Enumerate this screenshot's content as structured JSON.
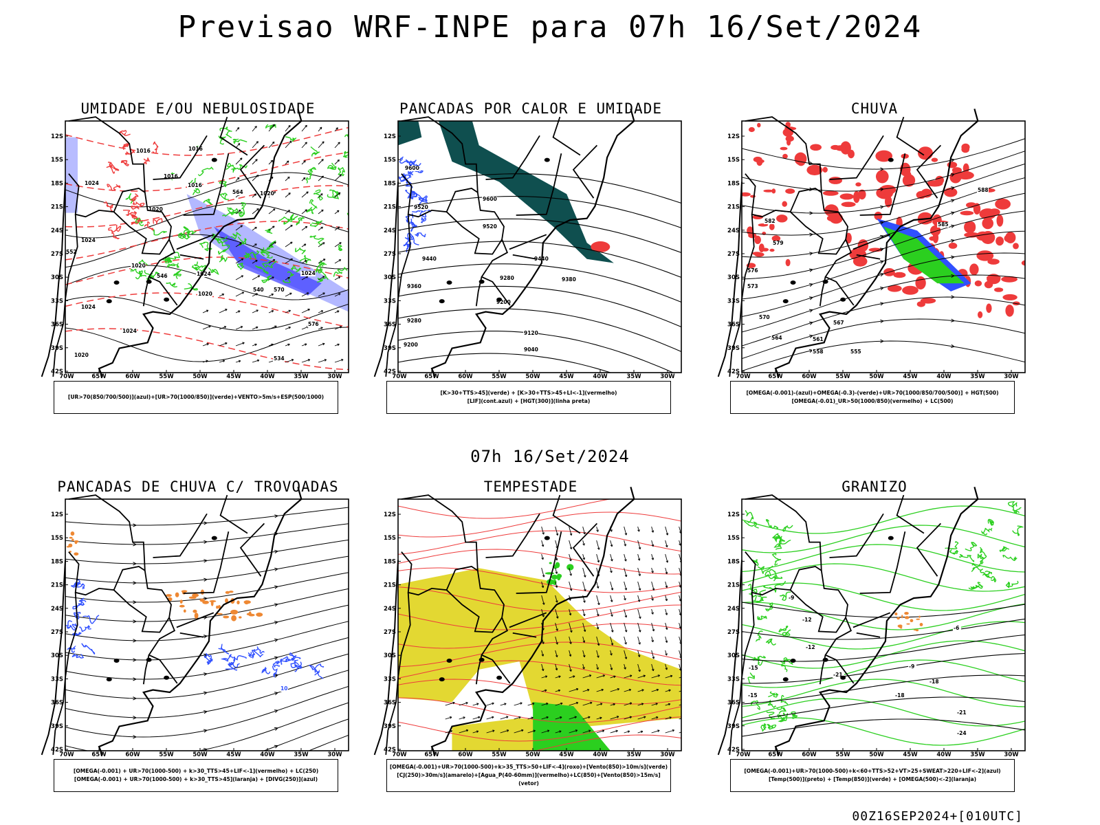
{
  "header": {
    "title": "Previsao WRF-INPE  para 07h 16/Set/2024"
  },
  "middle": {
    "title": "07h 16/Set/2024"
  },
  "footer": {
    "stamp": "00Z16SEP2024+[010UTC]"
  },
  "axes": {
    "lat_labels": [
      "12S",
      "15S",
      "18S",
      "21S",
      "24S",
      "27S",
      "30S",
      "33S",
      "36S",
      "39S",
      "42S"
    ],
    "lon_labels": [
      "70W",
      "65W",
      "60W",
      "55W",
      "50W",
      "45W",
      "40W",
      "35W",
      "30W"
    ]
  },
  "colors": {
    "red": "#ee3b3b",
    "green": "#2bcf1f",
    "blue": "#3050ff",
    "dark_teal": "#0f4f4f",
    "orange": "#ee8833",
    "yellow": "#e3d832",
    "lavender": "#9aa0ff"
  },
  "panels": [
    {
      "title": "UMIDADE E/OU NEBULOSIDADE",
      "caption_lines": [
        "[UR>70(850/700/500)](azul)+[UR>70(1000/850)](verde)+VENTO>5m/s+ESP(500/1000)"
      ],
      "contour_labels": [
        "1016",
        "1016",
        "1016",
        "1024",
        "1020",
        "1016",
        "1020",
        "1024",
        "1020",
        "1024",
        "1024",
        "1020",
        "1024",
        "1024",
        "1020",
        "570",
        "564",
        "552",
        "546",
        "540",
        "534",
        "576"
      ]
    },
    {
      "title": "PANCADAS POR CALOR E UMIDADE",
      "caption_lines": [
        "[K>30+TTS>45](verde) + [K>30+TTS>45+LI<-1](vermelho)",
        "[LIF](cont.azul) + [HGT(300)](linha preta)"
      ],
      "contour_labels": [
        "9600",
        "9520",
        "9600",
        "9520",
        "9440",
        "9360",
        "9440",
        "9380",
        "9280",
        "9200",
        "9280",
        "9200",
        "9120",
        "9040"
      ]
    },
    {
      "title": "CHUVA",
      "caption_lines": [
        "[OMEGA(-0.001)-(azul)+OMEGA(-0.3)-(verde)+UR>70(1000/850/700/500)] + HGT(500)",
        "[OMEGA(-0.01)_UR>50(1000/850)(vermelho) + LC(500)"
      ],
      "contour_labels": [
        "582",
        "579",
        "576",
        "573",
        "570",
        "567",
        "564",
        "561",
        "558",
        "555",
        "585",
        "588"
      ]
    },
    {
      "title": "PANCADAS DE CHUVA C/ TROVOADAS",
      "caption_lines": [
        "[OMEGA(-0.001) + UR>70(1000-500) + k>30_TTS>45+LIF<-1](vermelho) + LC(250)",
        "[OMEGA(-0.001) + UR>70(1000-500) + k>30_TTS>45](laranja) + [DIVG(250)](azul)"
      ],
      "contour_labels": [
        "10"
      ]
    },
    {
      "title": "TEMPESTADE",
      "caption_lines": [
        "[OMEGA(-0.001)+UR>70(1000-500)+k>35_TTS>50+LIF<-4](roxo)+[Vento(850)>10m/s](verde)",
        "[CJ(250)>30m/s](amarelo)+[Agua_P(40-60mm)](vermelho)+LC(850)+[Vento(850)>15m/s](vetor)"
      ],
      "contour_labels": []
    },
    {
      "title": "GRANIZO",
      "caption_lines": [
        "[OMEGA(-0.001)+UR>70(1000-500)+k<60+TTS>52+VT>25+SWEAT>220+LIF<-2](azul)",
        "[Temp(500)](preto) + [Temp(850)](verde) + [OMEGA(500)<-2](laranja)"
      ],
      "contour_labels": [
        "-9",
        "-12",
        "-12",
        "-15",
        "-18",
        "-21",
        "-21",
        "-24",
        "-18",
        "-6",
        "-9",
        "-15"
      ]
    }
  ]
}
